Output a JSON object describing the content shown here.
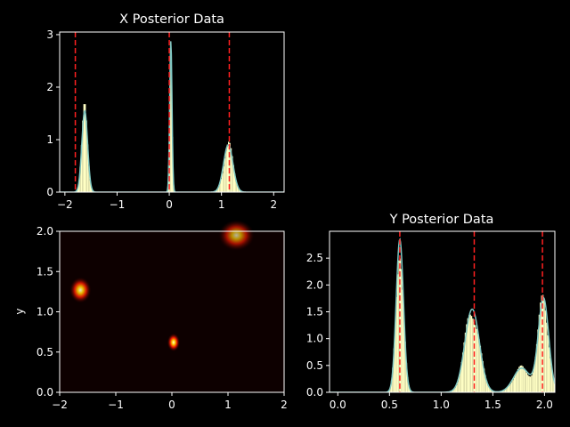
{
  "chart_data": [
    {
      "type": "histogram",
      "name": "x-posterior",
      "title": "X Posterior Data",
      "xlim": [
        -2.1,
        2.2
      ],
      "ylim": [
        0,
        3.05
      ],
      "xticks": [
        -2,
        -1,
        0,
        1,
        2
      ],
      "yticks": [
        0,
        1,
        2,
        3
      ],
      "peaks": [
        {
          "center": -1.62,
          "height": 1.55,
          "width": 0.055
        },
        {
          "center": 0.03,
          "height": 2.88,
          "width": 0.022
        },
        {
          "center": 1.13,
          "height": 0.9,
          "width": 0.09
        }
      ],
      "vlines": [
        -1.8,
        0.0,
        1.15
      ]
    },
    {
      "type": "heatmap",
      "name": "joint-posterior",
      "xlim": [
        -2,
        2
      ],
      "ylim": [
        0,
        2
      ],
      "xticks": [
        -2,
        -1,
        0,
        1,
        2
      ],
      "yticks": [
        0,
        0.5,
        1.0,
        1.5,
        2.0
      ],
      "ylabel": "y",
      "blobs": [
        {
          "x": -1.63,
          "y": 1.27,
          "sx": 0.12,
          "sy": 0.1,
          "intensity": 0.9
        },
        {
          "x": 0.03,
          "y": 0.62,
          "sx": 0.07,
          "sy": 0.07,
          "intensity": 1.0
        },
        {
          "x": 1.15,
          "y": 1.95,
          "sx": 0.2,
          "sy": 0.12,
          "intensity": 0.7
        }
      ]
    },
    {
      "type": "histogram",
      "name": "y-posterior",
      "title": "Y Posterior Data",
      "xlim": [
        -0.08,
        2.1
      ],
      "ylim": [
        0,
        3.0
      ],
      "xticks": [
        0.0,
        0.5,
        1.0,
        1.5,
        2.0
      ],
      "yticks": [
        0.0,
        0.5,
        1.0,
        1.5,
        2.0,
        2.5
      ],
      "peaks": [
        {
          "center": 0.6,
          "height": 2.85,
          "width": 0.035
        },
        {
          "center": 1.3,
          "height": 1.55,
          "width": 0.07
        },
        {
          "center": 1.99,
          "height": 1.75,
          "width": 0.05
        },
        {
          "center": 1.78,
          "height": 0.45,
          "width": 0.08
        }
      ],
      "vlines": [
        0.6,
        1.32,
        1.98
      ]
    }
  ]
}
